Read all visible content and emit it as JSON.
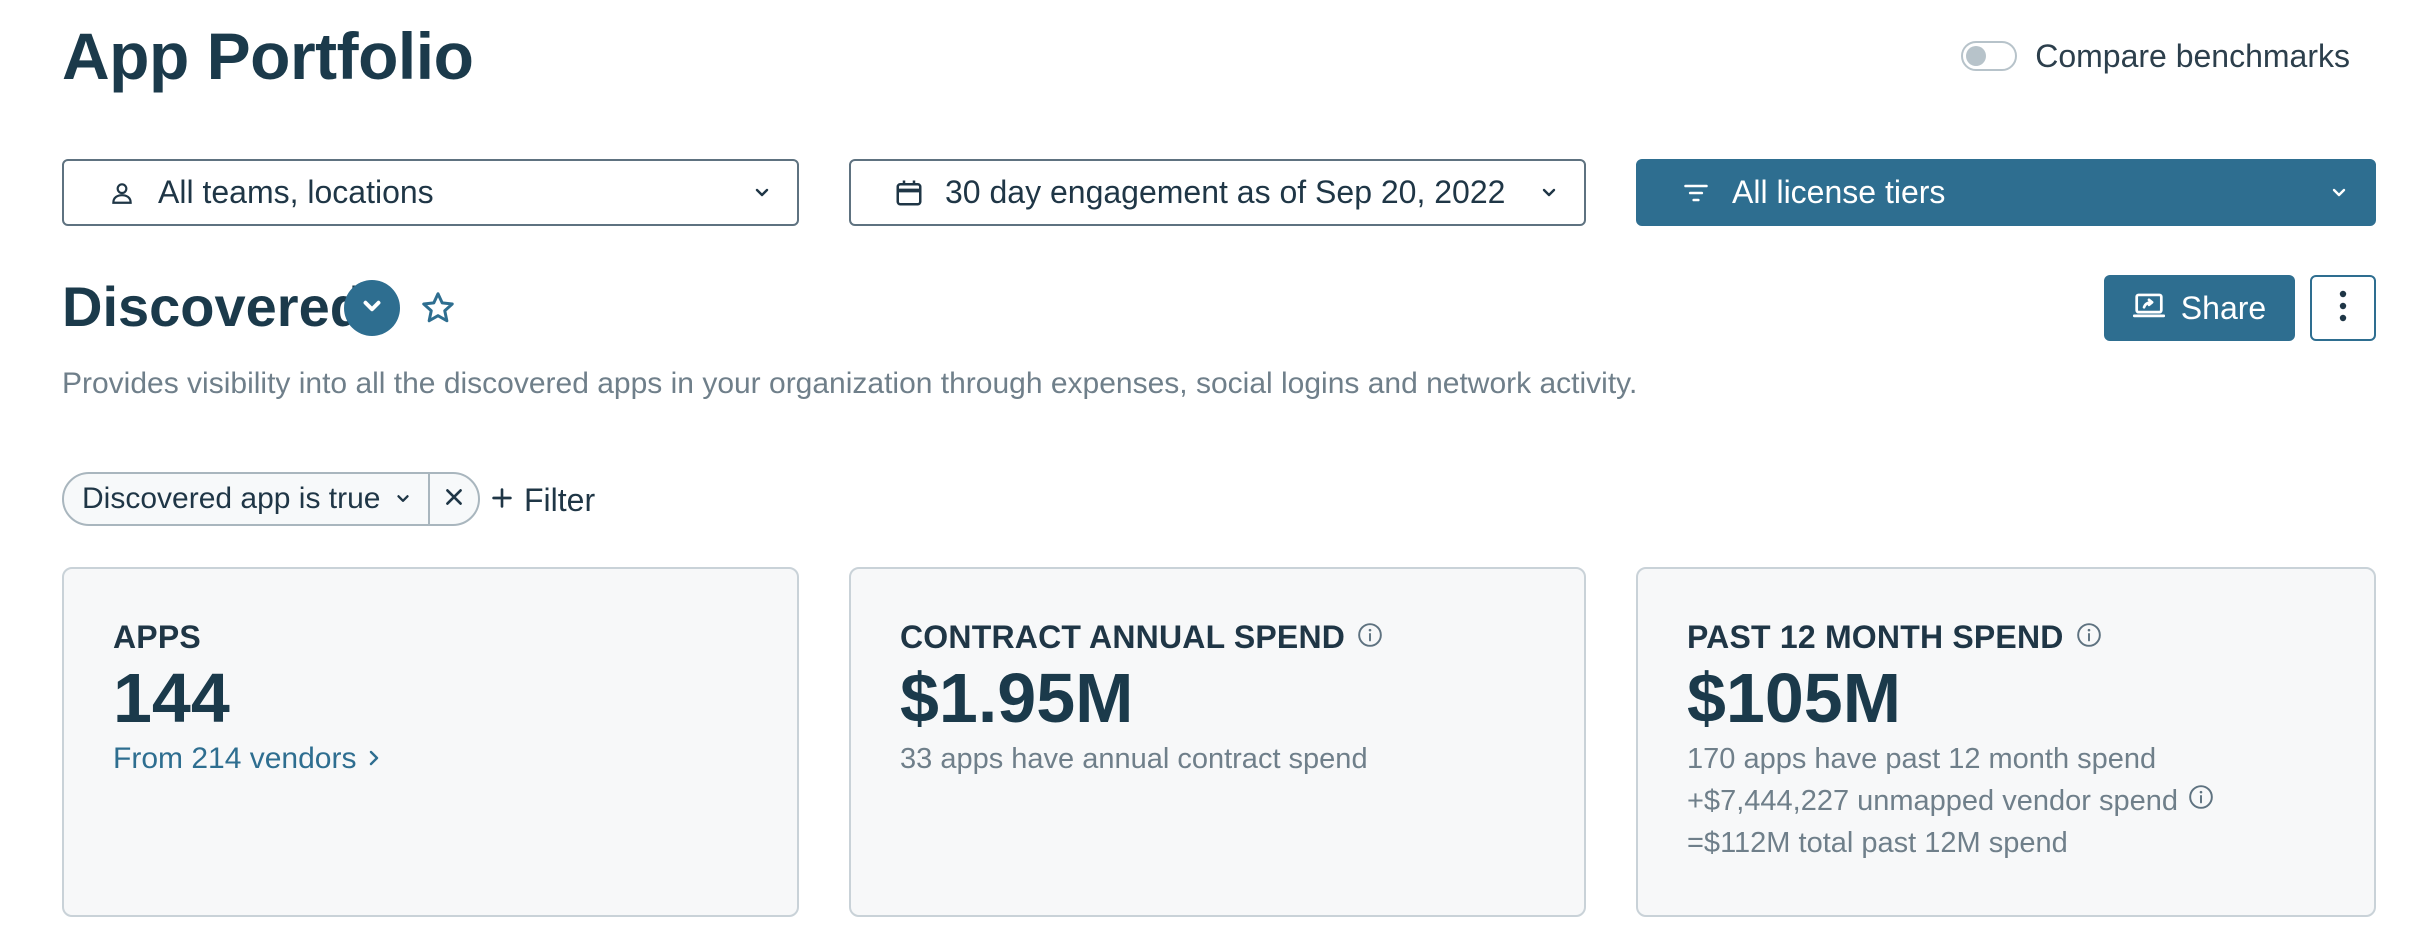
{
  "page": {
    "title": "App Portfolio"
  },
  "compare": {
    "label": "Compare benchmarks",
    "enabled": false
  },
  "filters": {
    "teams": {
      "label": "All teams, locations",
      "icon": "person-icon"
    },
    "engagement": {
      "label": "30 day engagement as of Sep 20, 2022",
      "icon": "calendar-icon"
    },
    "tiers": {
      "label": "All license tiers",
      "icon": "filter-icon"
    }
  },
  "section": {
    "title": "Discovered",
    "description": "Provides visibility into all the discovered apps in your organization through expenses, social logins and network activity.",
    "share_label": "Share"
  },
  "filter_chip": {
    "label": "Discovered app is true"
  },
  "add_filter": {
    "label": "Filter"
  },
  "cards": {
    "apps": {
      "label": "APPS",
      "value": "144",
      "link": "From 214 vendors"
    },
    "contract": {
      "label": "CONTRACT ANNUAL SPEND",
      "value": "$1.95M",
      "sub": "33 apps have annual contract spend"
    },
    "past12": {
      "label": "PAST 12 MONTH SPEND",
      "value": "$105M",
      "lines": [
        "170 apps have past 12 month spend",
        "+$7,444,227 unmapped vendor spend",
        "=$112M total past 12M spend"
      ]
    }
  },
  "colors": {
    "primary": "#2e6e90",
    "heading": "#1b3a4b",
    "muted": "#6f7f8a",
    "card_bg": "#f7f8f9"
  }
}
